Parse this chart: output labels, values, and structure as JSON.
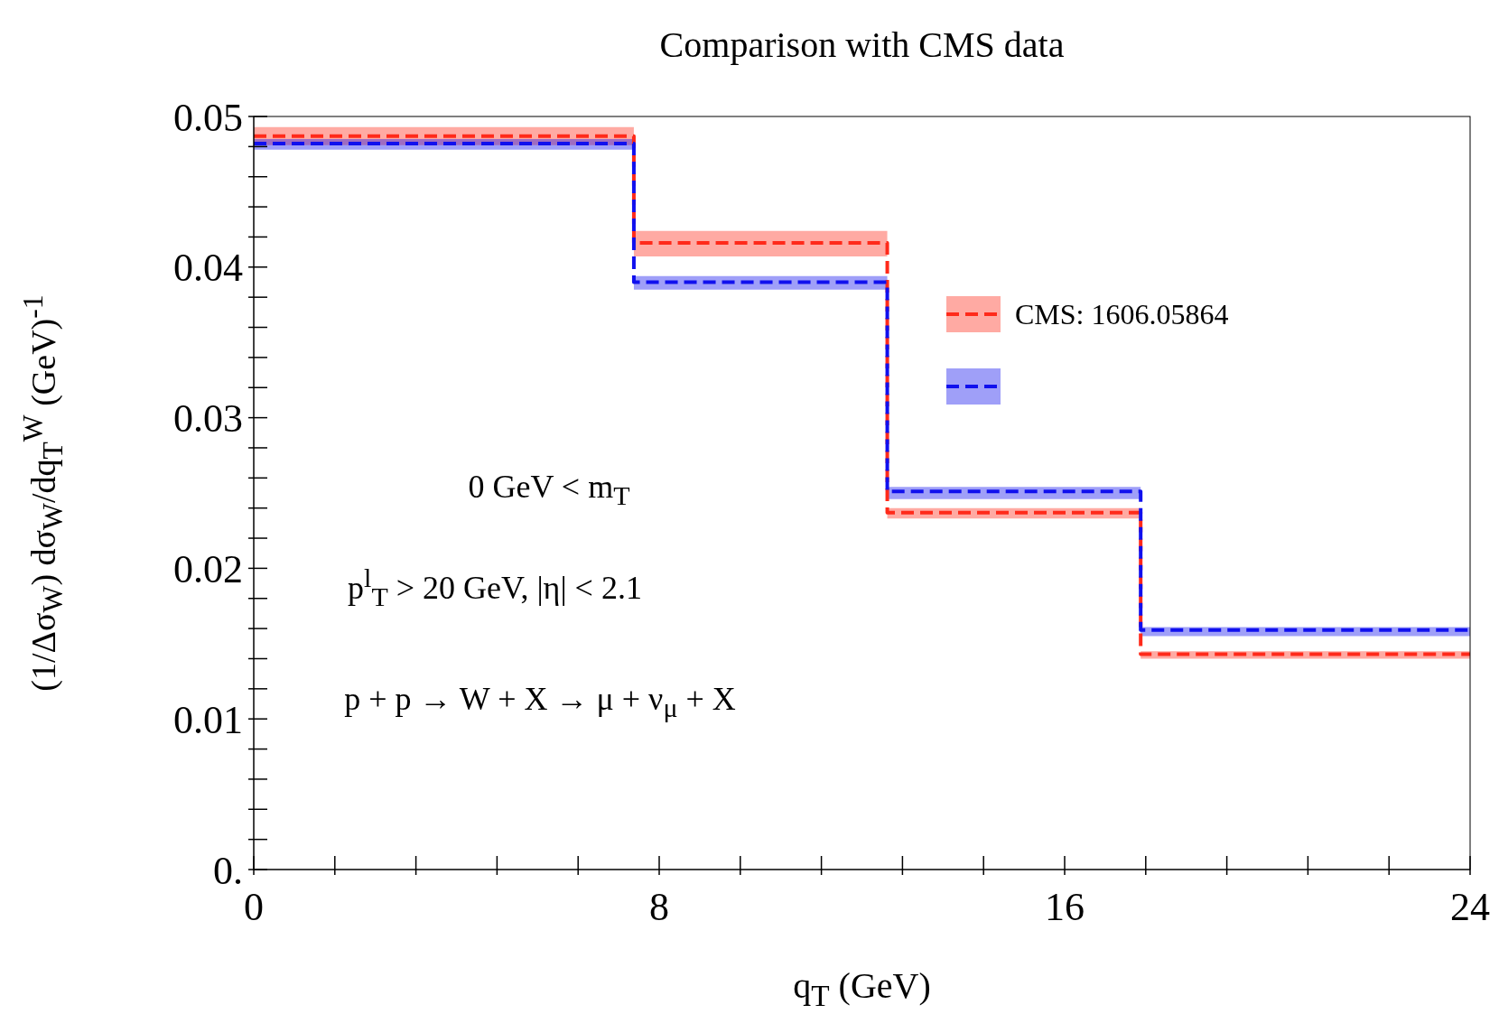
{
  "chart_data": {
    "type": "step",
    "title": "Comparison with CMS data",
    "xlabel": "q$_{T}$ (GeV)",
    "ylabel": "(1/Δσ$_{W}$) dσ$_{W}$/dq$_{T}$$^{W}$ (GeV)$^{-1}$",
    "x": [
      0,
      7.5,
      12.5,
      17.5,
      24
    ],
    "series": [
      {
        "name": "CMS: 1606.05864",
        "color": "#ff2a1a",
        "values": [
          0.0487,
          0.0416,
          0.0237,
          0.0143,
          0.0143
        ],
        "lower": [
          0.0481,
          0.0407,
          0.0233,
          0.014,
          0.014
        ],
        "upper": [
          0.0493,
          0.0424,
          0.024,
          0.0145,
          0.0145
        ]
      },
      {
        "color": "#1010ee",
        "values": [
          0.0482,
          0.039,
          0.0251,
          0.0159,
          0.0159
        ],
        "lower": [
          0.0478,
          0.0385,
          0.0246,
          0.0155,
          0.0155
        ],
        "upper": [
          0.0485,
          0.0394,
          0.0254,
          0.0161,
          0.0161
        ]
      }
    ],
    "line_style": "dashed",
    "legend": "right",
    "xlim": [
      0,
      24
    ],
    "ylim": [
      0,
      0.05
    ],
    "xticks": [
      0,
      {
        "value": 1.6,
        "label": null
      },
      {
        "value": 3.2,
        "label": null
      },
      {
        "value": 4.8,
        "label": null
      },
      {
        "value": 6.4,
        "label": null
      },
      8,
      {
        "value": 9.6,
        "label": null
      },
      {
        "value": 11.2,
        "label": null
      },
      {
        "value": 12.8,
        "label": null
      },
      {
        "value": 14.4,
        "label": null
      },
      16,
      {
        "value": 17.6,
        "label": null
      },
      {
        "value": 19.2,
        "label": null
      },
      {
        "value": 20.8,
        "label": null
      },
      {
        "value": 22.4,
        "label": null
      },
      24
    ],
    "yticks": [
      {
        "value": 0,
        "label": "0."
      },
      {
        "value": 0.002,
        "label": null
      },
      {
        "value": 0.004,
        "label": null
      },
      {
        "value": 0.006,
        "label": null
      },
      {
        "value": 0.008,
        "label": null
      },
      0.01,
      {
        "value": 0.012,
        "label": null
      },
      {
        "value": 0.014,
        "label": null
      },
      {
        "value": 0.016,
        "label": null
      },
      {
        "value": 0.018,
        "label": null
      },
      0.02,
      {
        "value": 0.022,
        "label": null
      },
      {
        "value": 0.024,
        "label": null
      },
      {
        "value": 0.026,
        "label": null
      },
      {
        "value": 0.028,
        "label": null
      },
      0.03,
      {
        "value": 0.032,
        "label": null
      },
      {
        "value": 0.034,
        "label": null
      },
      {
        "value": 0.036,
        "label": null
      },
      {
        "value": 0.038,
        "label": null
      },
      0.04,
      {
        "value": 0.042,
        "label": null
      },
      {
        "value": 0.044,
        "label": null
      },
      {
        "value": 0.046,
        "label": null
      },
      {
        "value": 0.048,
        "label": null
      },
      0.05
    ],
    "annotations": [
      "0 GeV < m$_{T}$",
      "p$^{l}$$_{T}$ > 20 GeV, |η| < 2.1",
      "p + p → W + X → μ + ν$_{μ}$ + X"
    ]
  }
}
